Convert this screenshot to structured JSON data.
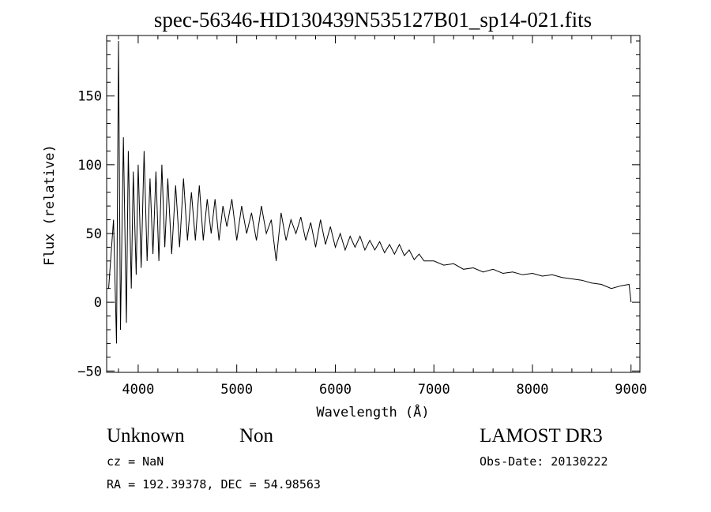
{
  "chart_data": {
    "type": "line",
    "title": "spec-56346-HD130439N535127B01_sp14-021.fits",
    "xlabel": "Wavelength (Å)",
    "ylabel": "Flux (relative)",
    "xlim": [
      3680,
      9090
    ],
    "ylim": [
      -51,
      194
    ],
    "xticks": [
      4000,
      5000,
      6000,
      7000,
      8000,
      9000
    ],
    "yticks": [
      -50,
      0,
      50,
      100,
      150
    ],
    "grid": false,
    "series": [
      {
        "name": "flux",
        "x": [
          3700,
          3750,
          3780,
          3800,
          3820,
          3850,
          3880,
          3900,
          3930,
          3950,
          3980,
          4000,
          4030,
          4060,
          4090,
          4120,
          4150,
          4180,
          4210,
          4240,
          4270,
          4300,
          4340,
          4380,
          4420,
          4460,
          4500,
          4540,
          4580,
          4620,
          4660,
          4700,
          4740,
          4780,
          4820,
          4860,
          4900,
          4950,
          5000,
          5050,
          5100,
          5150,
          5200,
          5250,
          5300,
          5350,
          5400,
          5450,
          5500,
          5550,
          5600,
          5650,
          5700,
          5750,
          5800,
          5850,
          5900,
          5950,
          6000,
          6050,
          6100,
          6150,
          6200,
          6250,
          6300,
          6350,
          6400,
          6450,
          6500,
          6550,
          6600,
          6650,
          6700,
          6750,
          6800,
          6850,
          6900,
          7000,
          7100,
          7200,
          7300,
          7400,
          7500,
          7600,
          7700,
          7800,
          7900,
          8000,
          8100,
          8200,
          8300,
          8400,
          8500,
          8600,
          8700,
          8800,
          8900,
          8980,
          9000
        ],
        "y": [
          10,
          60,
          -30,
          190,
          -20,
          120,
          -15,
          110,
          10,
          95,
          20,
          100,
          25,
          110,
          30,
          90,
          35,
          95,
          30,
          100,
          40,
          90,
          35,
          85,
          40,
          90,
          45,
          80,
          45,
          85,
          45,
          75,
          50,
          75,
          45,
          70,
          55,
          75,
          45,
          70,
          50,
          65,
          45,
          70,
          50,
          60,
          30,
          65,
          45,
          60,
          50,
          62,
          45,
          58,
          40,
          60,
          42,
          55,
          40,
          50,
          38,
          48,
          40,
          48,
          38,
          45,
          38,
          44,
          36,
          42,
          35,
          42,
          34,
          38,
          31,
          35,
          30,
          30,
          27,
          28,
          24,
          25,
          22,
          24,
          21,
          22,
          20,
          21,
          19,
          20,
          18,
          17,
          16,
          14,
          13,
          10,
          12,
          13,
          0
        ]
      }
    ]
  },
  "footer": {
    "object_class": "Unknown",
    "subclass": "Non",
    "survey": "LAMOST DR3",
    "cz": "cz = NaN",
    "obs_date": "Obs-Date: 20130222",
    "coords": "RA = 192.39378, DEC =  54.98563"
  }
}
